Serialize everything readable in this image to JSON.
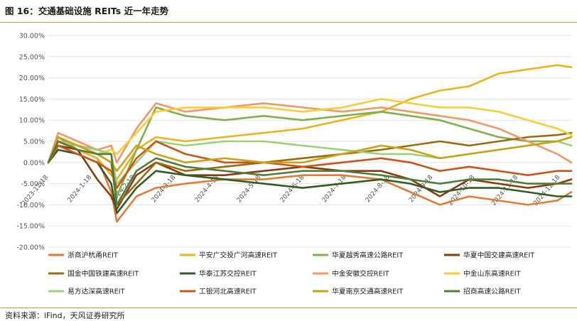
{
  "figure": {
    "title": "图 16：交通基础设施 REITs 近一年走势",
    "source": "资料来源：iFind，天风证券研究所"
  },
  "chart_data": {
    "type": "line",
    "title": "",
    "xlabel": "",
    "ylabel": "",
    "ylim": [
      -0.2,
      0.3
    ],
    "y_tick_values": [
      -0.2,
      -0.15,
      -0.1,
      -0.05,
      0.0,
      0.05,
      0.1,
      0.15,
      0.2,
      0.25,
      0.3
    ],
    "y_tick_labels": [
      "-20.00%",
      "-15.00%",
      "-10.00%",
      "-5.00%",
      "0.00%",
      "5.00%",
      "10.00%",
      "15.00%",
      "20.00%",
      "25.00%",
      "30.00%"
    ],
    "x_range": [
      "2023-12-18",
      "2024-12-26"
    ],
    "x_ticks": [
      "2023-12-18",
      "2024-1-18",
      "2024-2-18",
      "2024-3-18",
      "2024-4-18",
      "2024-5-18",
      "2024-6-18",
      "2024-7-18",
      "2024-8-18",
      "2024-9-18",
      "2024-10-18",
      "2024-11-18",
      "2024-12-18"
    ],
    "grid": true,
    "legend_position": "bottom",
    "series": [
      {
        "name": "浙商沪杭甬REIT",
        "color": "#e07b39",
        "points": [
          [
            "2023-12-18",
            0.0
          ],
          [
            "2023-12-25",
            0.06
          ],
          [
            "2024-1-8",
            0.03
          ],
          [
            "2024-1-22",
            0.01
          ],
          [
            "2024-2-1",
            -0.07
          ],
          [
            "2024-2-5",
            -0.14
          ],
          [
            "2024-2-19",
            -0.08
          ],
          [
            "2024-3-4",
            -0.06
          ],
          [
            "2024-3-25",
            -0.05
          ],
          [
            "2024-4-22",
            -0.04
          ],
          [
            "2024-5-20",
            -0.04
          ],
          [
            "2024-6-17",
            -0.03
          ],
          [
            "2024-7-15",
            -0.03
          ],
          [
            "2024-8-12",
            -0.04
          ],
          [
            "2024-9-2",
            -0.07
          ],
          [
            "2024-9-23",
            -0.1
          ],
          [
            "2024-10-14",
            -0.08
          ],
          [
            "2024-11-4",
            -0.09
          ],
          [
            "2024-11-25",
            -0.1
          ],
          [
            "2024-12-16",
            -0.09
          ],
          [
            "2024-12-26",
            -0.07
          ]
        ]
      },
      {
        "name": "平安广交投广河高速REIT",
        "color": "#e8b420",
        "points": [
          [
            "2023-12-18",
            0.0
          ],
          [
            "2023-12-25",
            0.05
          ],
          [
            "2024-1-8",
            0.03
          ],
          [
            "2024-1-22",
            0.01
          ],
          [
            "2024-2-1",
            -0.03
          ],
          [
            "2024-2-5",
            -0.04
          ],
          [
            "2024-2-19",
            0.03
          ],
          [
            "2024-3-4",
            0.06
          ],
          [
            "2024-3-25",
            0.05
          ],
          [
            "2024-4-22",
            0.06
          ],
          [
            "2024-5-20",
            0.07
          ],
          [
            "2024-6-17",
            0.08
          ],
          [
            "2024-7-15",
            0.1
          ],
          [
            "2024-8-12",
            0.12
          ],
          [
            "2024-9-2",
            0.15
          ],
          [
            "2024-9-23",
            0.17
          ],
          [
            "2024-10-14",
            0.18
          ],
          [
            "2024-11-4",
            0.21
          ],
          [
            "2024-11-25",
            0.22
          ],
          [
            "2024-12-16",
            0.23
          ],
          [
            "2024-12-26",
            0.225
          ]
        ]
      },
      {
        "name": "华夏越秀高速公路REIT",
        "color": "#7fb04a",
        "points": [
          [
            "2023-12-18",
            0.0
          ],
          [
            "2023-12-25",
            0.05
          ],
          [
            "2024-1-8",
            0.04
          ],
          [
            "2024-1-22",
            0.03
          ],
          [
            "2024-2-1",
            0.02
          ],
          [
            "2024-2-5",
            -0.08
          ],
          [
            "2024-2-19",
            0.03
          ],
          [
            "2024-3-4",
            0.13
          ],
          [
            "2024-3-25",
            0.11
          ],
          [
            "2024-4-22",
            0.1
          ],
          [
            "2024-5-20",
            0.11
          ],
          [
            "2024-6-17",
            0.1
          ],
          [
            "2024-7-15",
            0.11
          ],
          [
            "2024-8-12",
            0.12
          ],
          [
            "2024-9-2",
            0.11
          ],
          [
            "2024-9-23",
            0.1
          ],
          [
            "2024-10-14",
            0.08
          ],
          [
            "2024-11-4",
            0.06
          ],
          [
            "2024-11-25",
            0.05
          ],
          [
            "2024-12-16",
            0.05
          ],
          [
            "2024-12-26",
            0.06
          ]
        ]
      },
      {
        "name": "华夏中国交建高速REIT",
        "color": "#8b3a0f",
        "points": [
          [
            "2023-12-18",
            0.0
          ],
          [
            "2023-12-25",
            0.04
          ],
          [
            "2024-1-8",
            0.03
          ],
          [
            "2024-1-22",
            -0.04
          ],
          [
            "2024-2-1",
            -0.08
          ],
          [
            "2024-2-5",
            -0.11
          ],
          [
            "2024-2-19",
            -0.03
          ],
          [
            "2024-3-4",
            0.0
          ],
          [
            "2024-3-25",
            -0.03
          ],
          [
            "2024-4-22",
            -0.03
          ],
          [
            "2024-5-20",
            -0.02
          ],
          [
            "2024-6-17",
            -0.01
          ],
          [
            "2024-7-15",
            -0.02
          ],
          [
            "2024-8-12",
            -0.02
          ],
          [
            "2024-9-2",
            -0.04
          ],
          [
            "2024-9-23",
            -0.08
          ],
          [
            "2024-10-14",
            -0.04
          ],
          [
            "2024-11-4",
            -0.05
          ],
          [
            "2024-11-25",
            -0.06
          ],
          [
            "2024-12-16",
            -0.05
          ],
          [
            "2024-12-26",
            -0.04
          ]
        ]
      },
      {
        "name": "国金中国铁建高速REIT",
        "color": "#9c6a10",
        "points": [
          [
            "2023-12-18",
            0.0
          ],
          [
            "2023-12-25",
            0.05
          ],
          [
            "2024-1-8",
            0.04
          ],
          [
            "2024-1-22",
            0.02
          ],
          [
            "2024-2-1",
            0.0
          ],
          [
            "2024-2-5",
            -0.1
          ],
          [
            "2024-2-19",
            -0.05
          ],
          [
            "2024-3-4",
            0.0
          ],
          [
            "2024-3-25",
            -0.02
          ],
          [
            "2024-4-22",
            -0.01
          ],
          [
            "2024-5-20",
            0.0
          ],
          [
            "2024-6-17",
            0.01
          ],
          [
            "2024-7-15",
            0.02
          ],
          [
            "2024-8-12",
            0.03
          ],
          [
            "2024-9-2",
            0.04
          ],
          [
            "2024-9-23",
            0.05
          ],
          [
            "2024-10-14",
            0.04
          ],
          [
            "2024-11-4",
            0.05
          ],
          [
            "2024-11-25",
            0.06
          ],
          [
            "2024-12-16",
            0.065
          ],
          [
            "2024-12-26",
            0.07
          ]
        ]
      },
      {
        "name": "华泰江苏交控REIT",
        "color": "#2f5e25",
        "points": [
          [
            "2023-12-18",
            0.0
          ],
          [
            "2023-12-25",
            0.03
          ],
          [
            "2024-1-8",
            0.02
          ],
          [
            "2024-1-22",
            0.0
          ],
          [
            "2024-2-1",
            -0.05
          ],
          [
            "2024-2-5",
            -0.12
          ],
          [
            "2024-2-19",
            -0.06
          ],
          [
            "2024-3-4",
            -0.02
          ],
          [
            "2024-3-25",
            -0.03
          ],
          [
            "2024-4-22",
            -0.04
          ],
          [
            "2024-5-20",
            -0.05
          ],
          [
            "2024-6-17",
            -0.06
          ],
          [
            "2024-7-15",
            -0.05
          ],
          [
            "2024-8-12",
            -0.04
          ],
          [
            "2024-9-2",
            -0.05
          ],
          [
            "2024-9-23",
            -0.07
          ],
          [
            "2024-10-14",
            -0.06
          ],
          [
            "2024-11-4",
            -0.06
          ],
          [
            "2024-11-25",
            -0.07
          ],
          [
            "2024-12-16",
            -0.08
          ],
          [
            "2024-12-26",
            -0.08
          ]
        ]
      },
      {
        "name": "中金安徽交控REIT",
        "color": "#ee9a66",
        "points": [
          [
            "2023-12-18",
            0.0
          ],
          [
            "2023-12-25",
            0.07
          ],
          [
            "2024-1-8",
            0.05
          ],
          [
            "2024-1-22",
            0.03
          ],
          [
            "2024-2-1",
            0.04
          ],
          [
            "2024-2-5",
            0.0
          ],
          [
            "2024-2-19",
            0.08
          ],
          [
            "2024-3-4",
            0.14
          ],
          [
            "2024-3-25",
            0.12
          ],
          [
            "2024-4-22",
            0.13
          ],
          [
            "2024-5-20",
            0.14
          ],
          [
            "2024-6-17",
            0.13
          ],
          [
            "2024-7-15",
            0.12
          ],
          [
            "2024-8-12",
            0.13
          ],
          [
            "2024-9-2",
            0.12
          ],
          [
            "2024-9-23",
            0.11
          ],
          [
            "2024-10-14",
            0.1
          ],
          [
            "2024-11-4",
            0.08
          ],
          [
            "2024-11-25",
            0.05
          ],
          [
            "2024-12-16",
            0.02
          ],
          [
            "2024-12-26",
            0.0
          ]
        ]
      },
      {
        "name": "中金山东高速REIT",
        "color": "#f7cd38",
        "points": [
          [
            "2023-12-18",
            0.0
          ],
          [
            "2023-12-25",
            0.05
          ],
          [
            "2024-1-8",
            0.04
          ],
          [
            "2024-1-22",
            0.02
          ],
          [
            "2024-2-1",
            0.03
          ],
          [
            "2024-2-5",
            0.02
          ],
          [
            "2024-2-19",
            0.07
          ],
          [
            "2024-3-4",
            0.12
          ],
          [
            "2024-3-25",
            0.13
          ],
          [
            "2024-4-22",
            0.13
          ],
          [
            "2024-5-20",
            0.13
          ],
          [
            "2024-6-17",
            0.12
          ],
          [
            "2024-7-15",
            0.13
          ],
          [
            "2024-8-12",
            0.15
          ],
          [
            "2024-9-2",
            0.14
          ],
          [
            "2024-9-23",
            0.13
          ],
          [
            "2024-10-14",
            0.13
          ],
          [
            "2024-11-4",
            0.12
          ],
          [
            "2024-11-25",
            0.1
          ],
          [
            "2024-12-16",
            0.08
          ],
          [
            "2024-12-26",
            0.065
          ]
        ]
      },
      {
        "name": "易方达深高速REIT",
        "color": "#9dcf7b",
        "points": [
          [
            "2023-12-18",
            0.0
          ],
          [
            "2023-12-25",
            0.05
          ],
          [
            "2024-1-8",
            0.04
          ],
          [
            "2024-1-22",
            0.03
          ],
          [
            "2024-2-1",
            0.02
          ],
          [
            "2024-2-5",
            -0.05
          ],
          [
            "2024-2-19",
            0.0
          ],
          [
            "2024-3-4",
            0.05
          ],
          [
            "2024-3-25",
            0.04
          ],
          [
            "2024-4-22",
            0.05
          ],
          [
            "2024-5-20",
            0.05
          ],
          [
            "2024-6-17",
            0.04
          ],
          [
            "2024-7-15",
            0.03
          ],
          [
            "2024-8-12",
            0.02
          ],
          [
            "2024-9-2",
            0.02
          ],
          [
            "2024-9-23",
            0.01
          ],
          [
            "2024-10-14",
            0.02
          ],
          [
            "2024-11-4",
            0.03
          ],
          [
            "2024-11-25",
            0.04
          ],
          [
            "2024-12-16",
            0.05
          ],
          [
            "2024-12-26",
            0.04
          ]
        ]
      },
      {
        "name": "工银河北高速REIT",
        "color": "#c8561a",
        "points": [
          [
            "2023-12-18",
            0.0
          ],
          [
            "2023-12-25",
            0.04
          ],
          [
            "2024-1-8",
            0.02
          ],
          [
            "2024-1-22",
            0.0
          ],
          [
            "2024-2-1",
            -0.02
          ],
          [
            "2024-2-5",
            -0.06
          ],
          [
            "2024-2-19",
            0.01
          ],
          [
            "2024-3-4",
            0.05
          ],
          [
            "2024-3-25",
            0.02
          ],
          [
            "2024-4-22",
            0.0
          ],
          [
            "2024-5-20",
            0.0
          ],
          [
            "2024-6-17",
            -0.01
          ],
          [
            "2024-7-15",
            0.0
          ],
          [
            "2024-8-12",
            0.01
          ],
          [
            "2024-9-2",
            0.0
          ],
          [
            "2024-9-23",
            -0.02
          ],
          [
            "2024-10-14",
            -0.01
          ],
          [
            "2024-11-4",
            -0.02
          ],
          [
            "2024-11-25",
            -0.03
          ],
          [
            "2024-12-16",
            -0.02
          ],
          [
            "2024-12-26",
            -0.02
          ]
        ]
      },
      {
        "name": "华夏南京交通高速REIT",
        "color": "#c9a21a",
        "points": [
          [
            "2023-12-18",
            0.0
          ],
          [
            "2023-12-25",
            0.06
          ],
          [
            "2024-1-8",
            0.04
          ],
          [
            "2024-1-22",
            0.02
          ],
          [
            "2024-2-1",
            0.0
          ],
          [
            "2024-2-5",
            -0.02
          ],
          [
            "2024-2-19",
            0.04
          ],
          [
            "2024-3-4",
            0.02
          ],
          [
            "2024-3-25",
            0.0
          ],
          [
            "2024-4-22",
            0.01
          ],
          [
            "2024-5-20",
            0.0
          ],
          [
            "2024-6-17",
            0.0
          ],
          [
            "2024-7-15",
            0.02
          ],
          [
            "2024-8-12",
            0.04
          ],
          [
            "2024-9-2",
            0.03
          ],
          [
            "2024-9-23",
            0.01
          ],
          [
            "2024-10-14",
            0.02
          ],
          [
            "2024-11-4",
            0.03
          ],
          [
            "2024-11-25",
            0.04
          ],
          [
            "2024-12-16",
            0.05
          ],
          [
            "2024-12-26",
            0.06
          ]
        ]
      },
      {
        "name": "招商高速公路REIT",
        "color": "#4e7d3a",
        "points": [
          [
            "2023-12-18",
            0.0
          ],
          [
            "2023-12-25",
            0.05
          ],
          [
            "2024-1-8",
            0.03
          ],
          [
            "2024-1-22",
            0.02
          ],
          [
            "2024-2-1",
            0.02
          ],
          [
            "2024-2-5",
            -0.1
          ],
          [
            "2024-2-19",
            -0.02
          ],
          [
            "2024-3-4",
            0.01
          ],
          [
            "2024-3-25",
            -0.01
          ],
          [
            "2024-4-22",
            -0.02
          ],
          [
            "2024-5-20",
            -0.03
          ],
          [
            "2024-6-17",
            -0.02
          ],
          [
            "2024-7-15",
            -0.02
          ],
          [
            "2024-8-12",
            -0.03
          ],
          [
            "2024-9-2",
            -0.04
          ],
          [
            "2024-9-23",
            -0.05
          ],
          [
            "2024-10-14",
            -0.04
          ],
          [
            "2024-11-4",
            -0.04
          ],
          [
            "2024-11-25",
            -0.05
          ],
          [
            "2024-12-16",
            -0.05
          ],
          [
            "2024-12-26",
            -0.05
          ]
        ]
      }
    ]
  }
}
